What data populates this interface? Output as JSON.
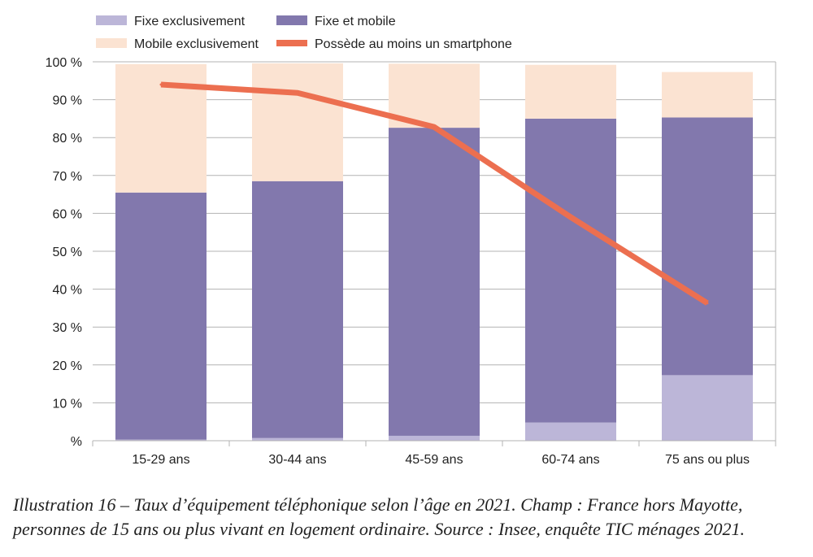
{
  "chart_data": {
    "type": "bar",
    "stacked": true,
    "categories": [
      "15-29 ans",
      "30-44 ans",
      "45-59 ans",
      "60-74 ans",
      "75 ans ou plus"
    ],
    "ylim": [
      0,
      100
    ],
    "yticks": [
      0,
      10,
      20,
      30,
      40,
      50,
      60,
      70,
      80,
      90,
      100
    ],
    "ytick_labels": [
      "%",
      "10 %",
      "20 %",
      "30 %",
      "40 %",
      "50 %",
      "60 %",
      "70 %",
      "80 %",
      "90 %",
      "100 %"
    ],
    "grid": true,
    "legend_position": "top-left",
    "series": [
      {
        "name": "Fixe exclusivement",
        "type": "bar",
        "color": "#bcb6d8",
        "values": [
          0.3,
          0.7,
          1.3,
          4.8,
          17.3
        ]
      },
      {
        "name": "Fixe et mobile",
        "type": "bar",
        "color": "#8278ad",
        "values": [
          65.2,
          67.8,
          81.3,
          80.2,
          68.0
        ]
      },
      {
        "name": "Mobile exclusivement",
        "type": "bar",
        "color": "#fbe3d2",
        "values": [
          33.9,
          31.1,
          16.9,
          14.2,
          12.0
        ]
      },
      {
        "name": "Possède au moins un smartphone",
        "type": "line",
        "color": "#ec6f50",
        "values": [
          94.0,
          91.8,
          82.8,
          59.0,
          36.3
        ]
      }
    ]
  },
  "caption": "Illustration 16 – Taux d’équipement téléphonique selon l’âge en 2021.  Champ : France hors Mayotte, personnes de 15 ans ou plus vivant en logement ordinaire. Source : Insee, enquête TIC ménages 2021."
}
